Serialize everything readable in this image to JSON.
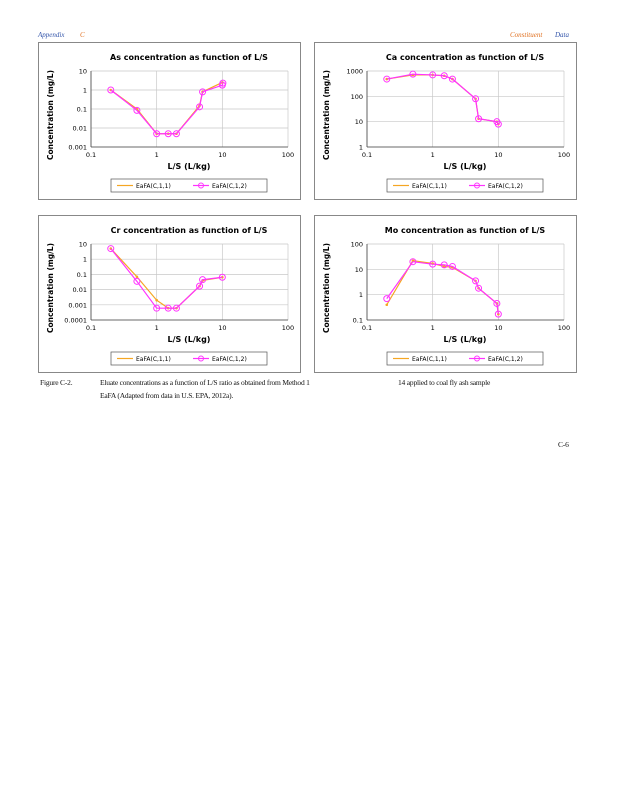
{
  "header": {
    "left_a": "Appendix",
    "left_b": "C",
    "right_a": "Constituent",
    "right_b": "Data"
  },
  "caption": {
    "label": "Figure C-2.",
    "line1": "Eluate concentrations as a function of L/S ratio as obtained from Method 1",
    "line1_right": "14 applied to coal fly ash sample",
    "line2": "EaFA (Adapted from data in U.S. EPA, 2012a)."
  },
  "page_number": "C-6",
  "colors": {
    "series1": "#f5a623",
    "series2": "#ff33ff",
    "grid": "#c8c8c8"
  },
  "chart_data": [
    {
      "type": "line",
      "title": "As concentration as function of L/S",
      "xlabel": "L/S (L/kg)",
      "ylabel": "Concentration (mg/L)",
      "xscale": "log",
      "yscale": "log",
      "xlim": [
        0.1,
        100
      ],
      "ylim": [
        0.001,
        10
      ],
      "xticks": [
        "0.1",
        "1",
        "10",
        "100"
      ],
      "yticks": [
        "0.001",
        "0.01",
        "0.1",
        "1",
        "10"
      ],
      "legend": "bottom",
      "series": [
        {
          "name": "EaFA(C,1,1)",
          "x": [
            0.2,
            0.5,
            1,
            1.5,
            2,
            4.5,
            5,
            10
          ],
          "y": [
            1.0,
            0.1,
            0.005,
            0.005,
            0.005,
            0.15,
            0.8,
            2.5
          ]
        },
        {
          "name": "EaFA(C,1,2)",
          "x": [
            0.2,
            0.5,
            1,
            1.5,
            2,
            4.5,
            5,
            10,
            10.2
          ],
          "y": [
            1.0,
            0.085,
            0.005,
            0.005,
            0.005,
            0.13,
            0.8,
            1.8,
            2.3
          ]
        }
      ]
    },
    {
      "type": "line",
      "title": "Ca concentration as function of L/S",
      "xlabel": "L/S (L/kg)",
      "ylabel": "Concentration (mg/L)",
      "xscale": "log",
      "yscale": "log",
      "xlim": [
        0.1,
        100
      ],
      "ylim": [
        1,
        1000
      ],
      "xticks": [
        "0.1",
        "1",
        "10",
        "100"
      ],
      "yticks": [
        "1",
        "10",
        "100",
        "1000"
      ],
      "legend": "bottom",
      "series": [
        {
          "name": "EaFA(C,1,1)",
          "x": [
            0.2,
            0.5,
            1,
            1.5,
            2,
            4.5,
            5,
            9.5,
            10
          ],
          "y": [
            480,
            700,
            700,
            650,
            480,
            80,
            13,
            10,
            8
          ]
        },
        {
          "name": "EaFA(C,1,2)",
          "x": [
            0.2,
            0.5,
            1,
            1.5,
            2,
            4.5,
            5,
            9.5,
            10
          ],
          "y": [
            480,
            750,
            700,
            650,
            480,
            80,
            13,
            10,
            8
          ]
        }
      ]
    },
    {
      "type": "line",
      "title": "Cr concentration as function of L/S",
      "xlabel": "L/S (L/kg)",
      "ylabel": "Concentration (mg/L)",
      "xscale": "log",
      "yscale": "log",
      "xlim": [
        0.1,
        100
      ],
      "ylim": [
        0.0001,
        10
      ],
      "xticks": [
        "0.1",
        "1",
        "10",
        "100"
      ],
      "yticks": [
        "0.0001",
        "0.001",
        "0.01",
        "0.1",
        "1",
        "10"
      ],
      "legend": "bottom",
      "series": [
        {
          "name": "EaFA(C,1,1)",
          "x": [
            0.2,
            0.5,
            1,
            1.5,
            2,
            4.5,
            5,
            10
          ],
          "y": [
            5,
            0.07,
            0.002,
            0.0006,
            0.0006,
            0.017,
            0.04,
            0.065
          ]
        },
        {
          "name": "EaFA(C,1,2)",
          "x": [
            0.2,
            0.5,
            1,
            1.5,
            2,
            4.5,
            5,
            10
          ],
          "y": [
            5,
            0.035,
            0.0006,
            0.0006,
            0.0006,
            0.017,
            0.045,
            0.065
          ]
        }
      ]
    },
    {
      "type": "line",
      "title": "Mo concentration as function of L/S",
      "xlabel": "L/S (L/kg)",
      "ylabel": "Concentration (mg/L)",
      "xscale": "log",
      "yscale": "log",
      "xlim": [
        0.1,
        100
      ],
      "ylim": [
        0.1,
        100
      ],
      "xticks": [
        "0.1",
        "1",
        "10",
        "100"
      ],
      "yticks": [
        "0.1",
        "1",
        "10",
        "100"
      ],
      "legend": "bottom",
      "series": [
        {
          "name": "EaFA(C,1,1)",
          "x": [
            0.2,
            0.5,
            1,
            1.5,
            2,
            4.5,
            5,
            9.5,
            10
          ],
          "y": [
            0.4,
            22,
            17,
            13,
            12,
            3.5,
            1.8,
            0.45,
            0.17
          ]
        },
        {
          "name": "EaFA(C,1,2)",
          "x": [
            0.2,
            0.5,
            1,
            1.5,
            2,
            4.5,
            5,
            9.5,
            10
          ],
          "y": [
            0.7,
            20,
            16,
            15,
            13,
            3.5,
            1.8,
            0.45,
            0.17
          ]
        }
      ]
    }
  ]
}
